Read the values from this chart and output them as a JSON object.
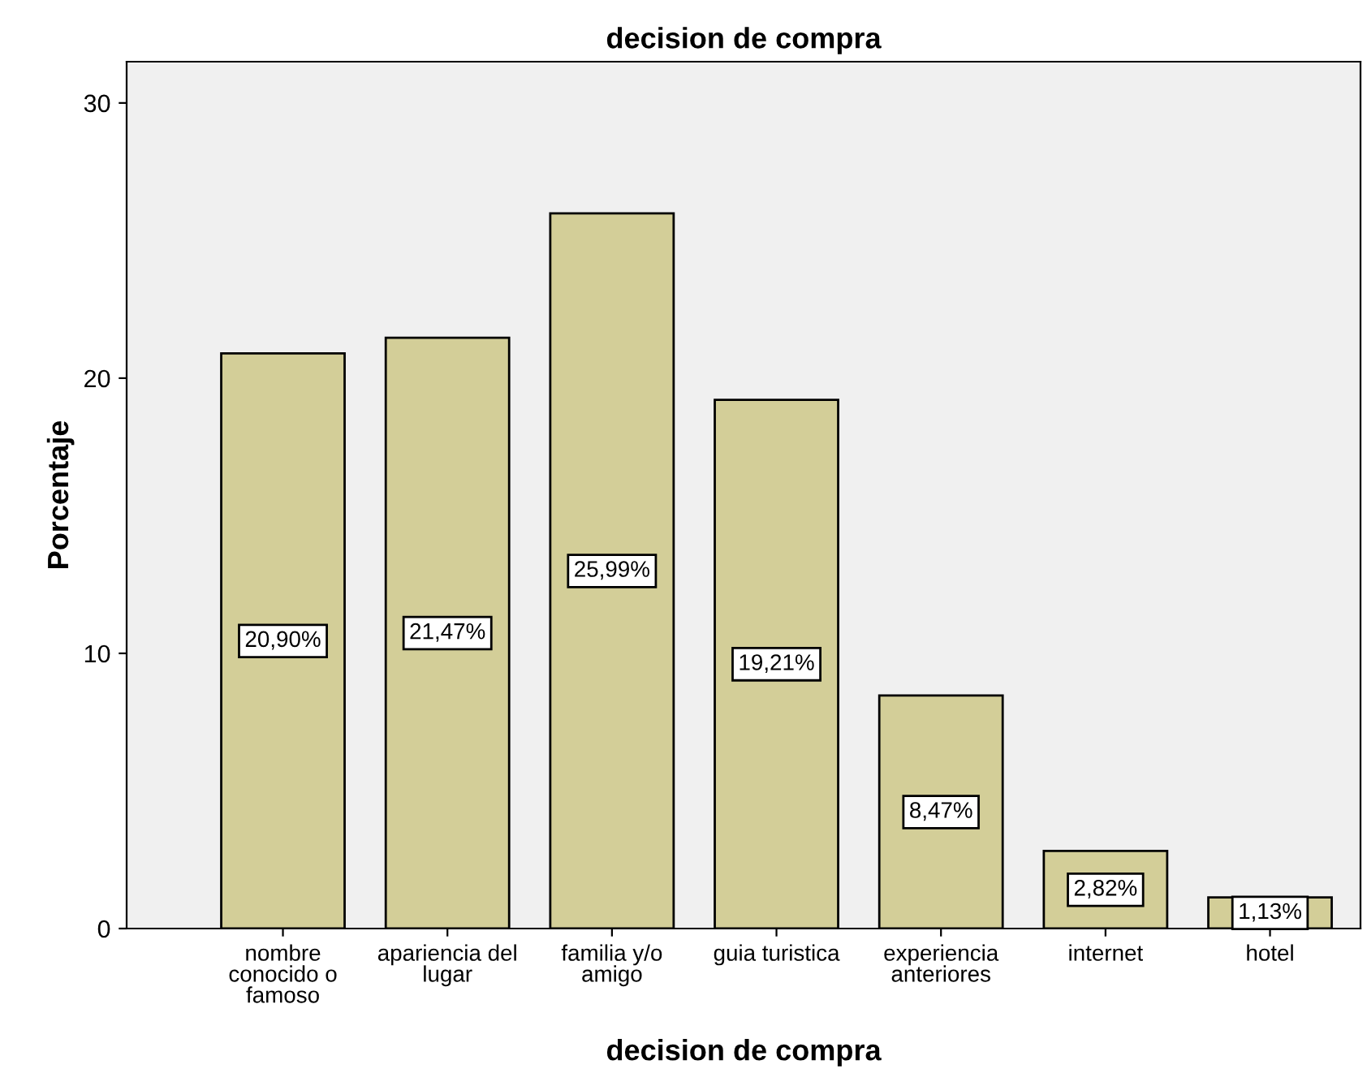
{
  "chart_data": {
    "type": "bar",
    "title": "decision de compra",
    "xlabel": "decision de compra",
    "ylabel": "Porcentaje",
    "categories": [
      "nombre\nconocido o\nfamoso",
      "apariencia del\nlugar",
      "familia y/o\namigo",
      "guia turistica",
      "experiencia\nanteriores",
      "internet",
      "hotel"
    ],
    "values": [
      20.9,
      21.47,
      25.99,
      19.21,
      8.47,
      2.82,
      1.13
    ],
    "value_labels": [
      "20,90%",
      "21,47%",
      "25,99%",
      "19,21%",
      "8,47%",
      "2,82%",
      "1,13%"
    ],
    "color": "#d3ce98",
    "ylim": [
      0,
      31.5
    ],
    "yticks": [
      0,
      10,
      20,
      30
    ],
    "grid": false,
    "legend": false
  }
}
